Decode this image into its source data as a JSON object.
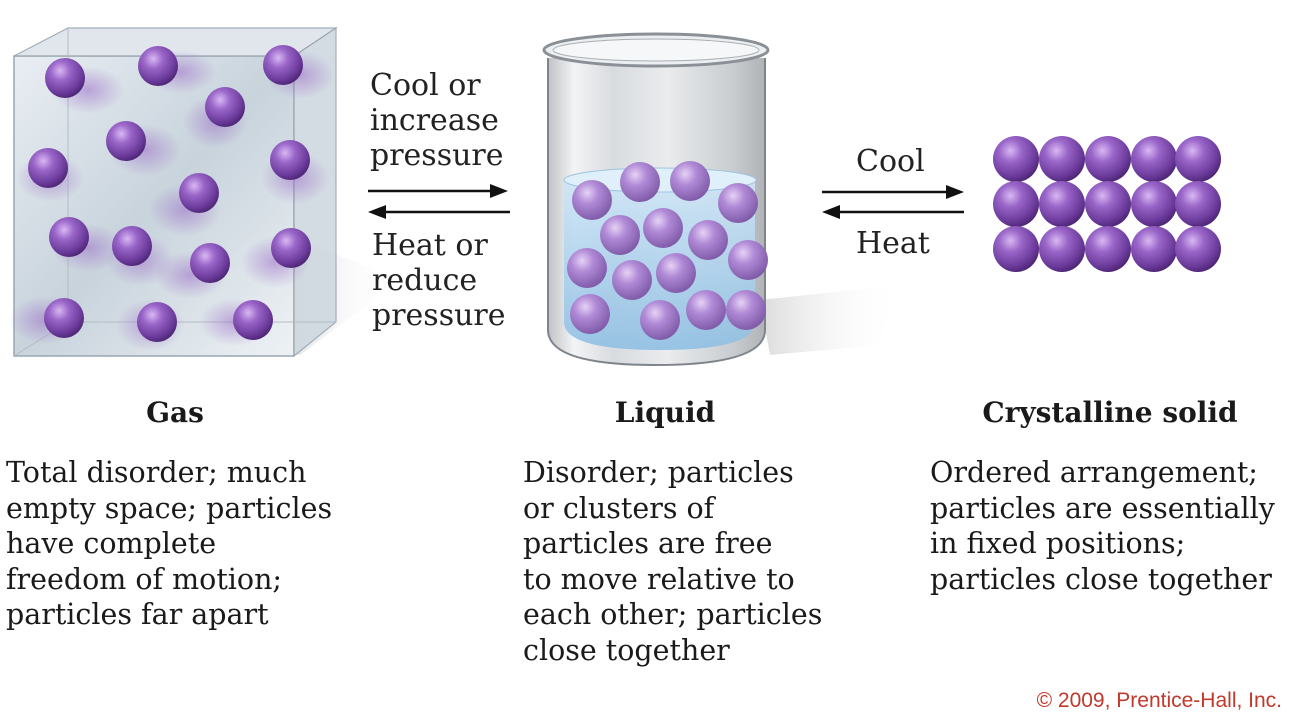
{
  "arrows": {
    "gas_liquid": {
      "forward_label": "Cool or\nincrease\npressure",
      "reverse_label": "Heat or\nreduce\npressure"
    },
    "liquid_solid": {
      "forward_label": "Cool",
      "reverse_label": "Heat"
    }
  },
  "states": [
    {
      "title": "Gas",
      "description": "Total disorder; much\nempty space; particles\nhave complete\nfreedom of motion;\nparticles far apart"
    },
    {
      "title": "Liquid",
      "description": "Disorder; particles\nor clusters of\nparticles are free\nto move relative to\neach other; particles\nclose together"
    },
    {
      "title": "Crystalline solid",
      "description": "Ordered arrangement;\nparticles are essentially\nin fixed positions;\nparticles close together"
    }
  ],
  "copyright": "© 2009, Prentice-Hall, Inc.",
  "colors": {
    "particle": "#7b4aa8",
    "copyright": "#c0392b",
    "arrow": "#111111"
  }
}
